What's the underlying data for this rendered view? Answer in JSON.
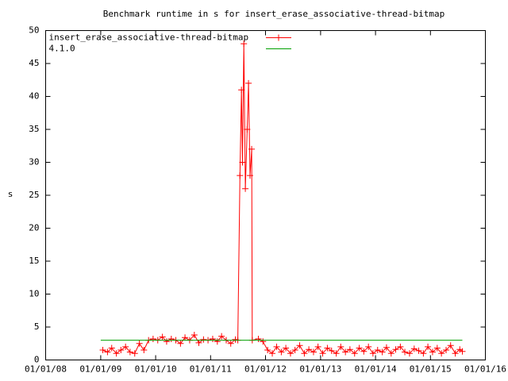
{
  "chart_data": {
    "type": "line",
    "title": "Benchmark runtime in s for insert_erase_associative-thread-bitmap",
    "y_label": "s",
    "xlim": [
      "01/01/08",
      "01/01/16"
    ],
    "xticks": [
      "01/01/08",
      "01/01/09",
      "01/01/10",
      "01/01/11",
      "01/01/12",
      "01/01/13",
      "01/01/14",
      "01/01/15",
      "01/01/16"
    ],
    "ylim": [
      0,
      50
    ],
    "yticks": [
      0,
      5,
      10,
      15,
      20,
      25,
      30,
      35,
      40,
      45,
      50
    ],
    "grid": false,
    "legend": "top left",
    "series": [
      {
        "name": "insert_erase_associative-thread-bitmap",
        "color": "#ff0000",
        "marker": "+",
        "x": [
          "01/15/09",
          "02/15/09",
          "03/15/09",
          "04/15/09",
          "05/15/09",
          "06/15/09",
          "07/15/09",
          "08/15/09",
          "09/15/09",
          "10/15/09",
          "11/15/09",
          "12/15/09",
          "01/15/10",
          "02/15/10",
          "03/15/10",
          "04/15/10",
          "05/15/10",
          "06/15/10",
          "07/15/10",
          "08/15/10",
          "09/15/10",
          "10/15/10",
          "11/15/10",
          "12/15/10",
          "01/15/11",
          "02/15/11",
          "03/15/11",
          "04/15/11",
          "05/15/11",
          "06/15/11",
          "07/01/11",
          "07/15/11",
          "07/25/11",
          "08/01/11",
          "08/10/11",
          "08/20/11",
          "09/01/11",
          "09/10/11",
          "09/20/11",
          "10/01/11",
          "10/05/11",
          "11/15/11",
          "12/15/11",
          "01/15/12",
          "02/15/12",
          "03/15/12",
          "04/15/12",
          "05/15/12",
          "06/15/12",
          "07/15/12",
          "08/15/12",
          "09/15/12",
          "10/15/12",
          "11/15/12",
          "12/15/12",
          "01/15/13",
          "02/15/13",
          "03/15/13",
          "04/15/13",
          "05/15/13",
          "06/15/13",
          "07/15/13",
          "08/15/13",
          "09/15/13",
          "10/15/13",
          "11/15/13",
          "12/15/13",
          "01/15/14",
          "02/15/14",
          "03/15/14",
          "04/15/14",
          "05/15/14",
          "06/15/14",
          "07/15/14",
          "08/15/14",
          "09/15/14",
          "10/15/14",
          "11/15/14",
          "12/15/14",
          "01/15/15",
          "02/15/15",
          "03/15/15",
          "04/15/15",
          "05/15/15",
          "06/15/15",
          "07/15/15",
          "08/01/15"
        ],
        "values": [
          1.5,
          1.2,
          1.8,
          1.0,
          1.5,
          2.0,
          1.2,
          1.0,
          2.5,
          1.5,
          3.0,
          3.2,
          3.0,
          3.5,
          2.8,
          3.2,
          3.0,
          2.5,
          3.4,
          3.0,
          3.8,
          2.6,
          3.1,
          3.0,
          3.2,
          2.8,
          3.6,
          3.0,
          2.5,
          3.1,
          3.0,
          28,
          41,
          30,
          48,
          26,
          35,
          42,
          28,
          32,
          3.0,
          3.2,
          2.8,
          1.5,
          1.0,
          2.0,
          1.2,
          1.8,
          1.0,
          1.5,
          2.2,
          1.0,
          1.6,
          1.2,
          2.0,
          1.0,
          1.8,
          1.4,
          1.0,
          2.0,
          1.2,
          1.6,
          1.0,
          1.8,
          1.3,
          2.0,
          1.0,
          1.5,
          1.2,
          1.9,
          1.0,
          1.6,
          2.0,
          1.2,
          1.0,
          1.7,
          1.4,
          1.0,
          2.0,
          1.2,
          1.8,
          1.0,
          1.5,
          2.2,
          1.0,
          1.6,
          1.3
        ]
      },
      {
        "name": "4.1.0",
        "color": "#00a000",
        "x": [
          "01/01/09",
          "08/01/15"
        ],
        "values": [
          3,
          3
        ]
      }
    ]
  }
}
